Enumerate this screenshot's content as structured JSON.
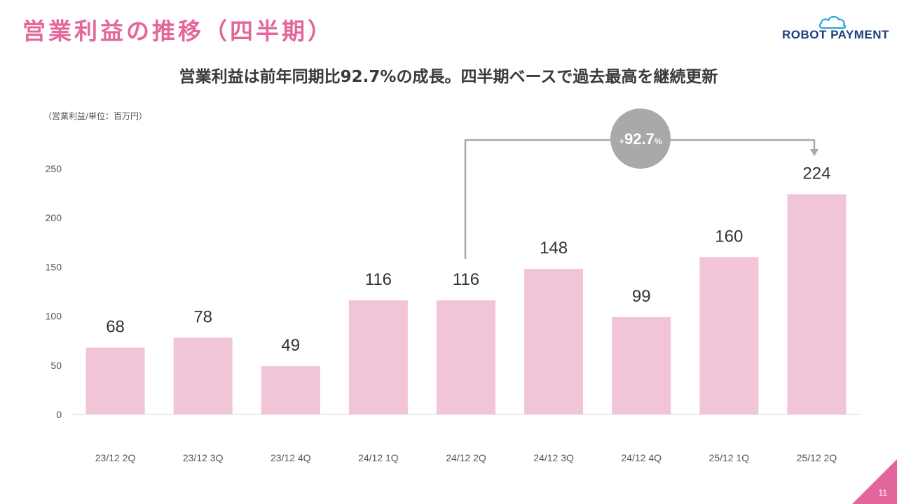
{
  "slide": {
    "title": "営業利益の推移（四半期）",
    "subtitle": "営業利益は前年同期比92.7%の成長。四半期ベースで過去最高を継続更新",
    "unit_note": "（営業利益/単位：百万円）",
    "page_number": "11"
  },
  "logo": {
    "text": "ROBOT PAYMENT"
  },
  "colors": {
    "bar": "#f2c4d8",
    "title": "#e3679b",
    "badge": "#a9a9a9",
    "axis": "#d9d9d9",
    "corner": "#e3679b"
  },
  "annotation": {
    "plus": "+",
    "value": "92.7",
    "percent": "%"
  },
  "chart_data": {
    "type": "bar",
    "categories": [
      "23/12 2Q",
      "23/12 3Q",
      "23/12 4Q",
      "24/12 1Q",
      "24/12 2Q",
      "24/12 3Q",
      "24/12 4Q",
      "25/12 1Q",
      "25/12 2Q"
    ],
    "values": [
      68,
      78,
      49,
      116,
      116,
      148,
      99,
      160,
      224
    ],
    "ylim": [
      0,
      250
    ],
    "yticks": [
      0,
      50,
      100,
      150,
      200,
      250
    ],
    "grid": false,
    "legend": "none"
  }
}
